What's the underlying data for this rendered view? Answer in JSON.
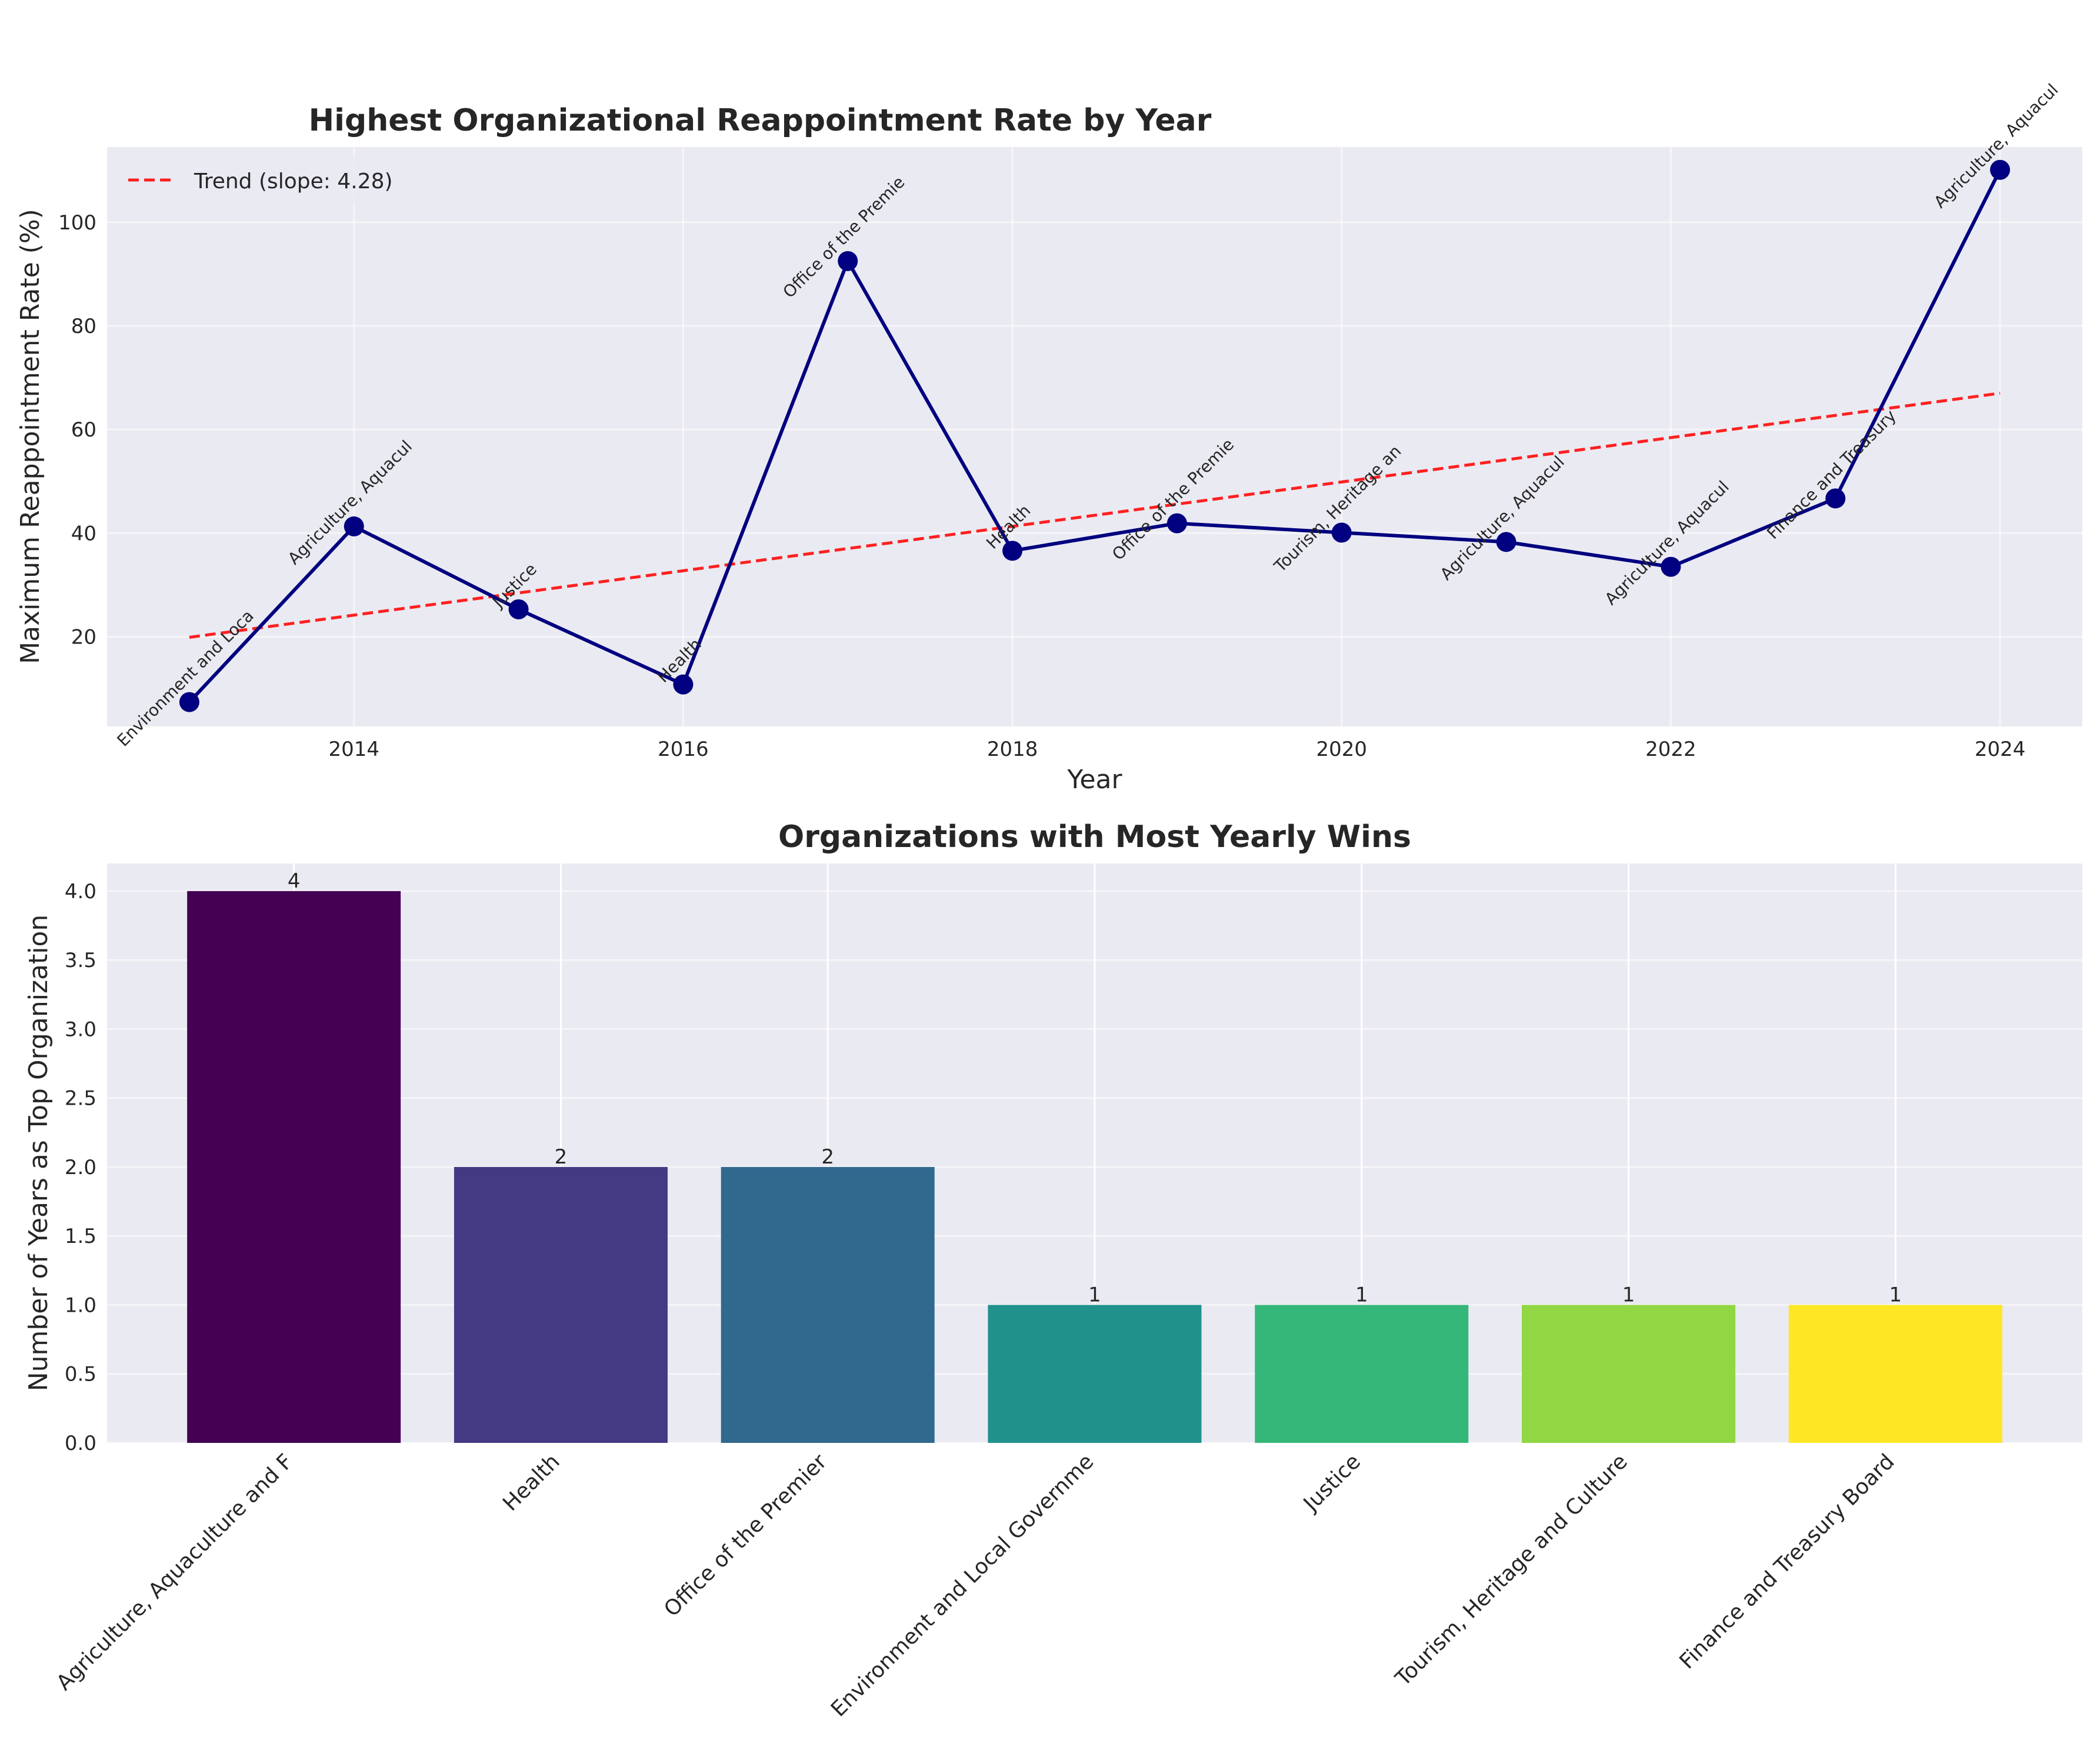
{
  "chart_data": [
    {
      "type": "line",
      "title": "Highest Organizational Reappointment Rate by Year",
      "xlabel": "Year",
      "ylabel": "Maximum Reappointment Rate (%)",
      "xlim": [
        2012.5,
        2024.5
      ],
      "ylim": [
        2.7,
        114.5
      ],
      "xticks": [
        2014,
        2016,
        2018,
        2020,
        2022,
        2024
      ],
      "yticks": [
        20,
        40,
        60,
        80,
        100
      ],
      "grid": true,
      "legend_position": "upper-left",
      "series": [
        {
          "type": "line",
          "color": "#000080",
          "x": [
            2013,
            2014,
            2015,
            2016,
            2017,
            2018,
            2019,
            2020,
            2021,
            2022,
            2023,
            2024
          ],
          "y": [
            7.4,
            41.3,
            25.3,
            10.8,
            92.5,
            36.6,
            41.9,
            40.1,
            38.3,
            33.5,
            46.7,
            110.1
          ],
          "labels": [
            "Environment and Loca",
            "Agriculture, Aquacul",
            "Justice",
            "Health",
            "Office of the Premie",
            "Health",
            "Office of the Premie",
            "Tourism, Heritage an",
            "Agriculture, Aquacul",
            "Agriculture, Aquacul",
            "Finance and Treasury",
            "Agriculture, Aquacul"
          ]
        },
        {
          "type": "trend",
          "name": "Trend (slope: 4.28)",
          "color": "#ff2020",
          "x": [
            2013,
            2024
          ],
          "y": [
            19.9,
            67.0
          ]
        }
      ]
    },
    {
      "type": "bar",
      "title": "Organizations with Most Yearly Wins",
      "xlabel": "",
      "ylabel": "Number of Years as Top Organization",
      "ylim": [
        0,
        4.2
      ],
      "yticks": [
        0.0,
        0.5,
        1.0,
        1.5,
        2.0,
        2.5,
        3.0,
        3.5,
        4.0
      ],
      "grid": true,
      "categories": [
        "Agriculture, Aquaculture and F",
        "Health",
        "Office of the Premier",
        "Environment and Local Governme",
        "Justice",
        "Tourism, Heritage and Culture",
        "Finance and Treasury Board"
      ],
      "values": [
        4,
        2,
        2,
        1,
        1,
        1,
        1
      ],
      "colors": [
        "#440154",
        "#443983",
        "#31688e",
        "#21918c",
        "#35b779",
        "#90d743",
        "#fde725"
      ]
    }
  ]
}
